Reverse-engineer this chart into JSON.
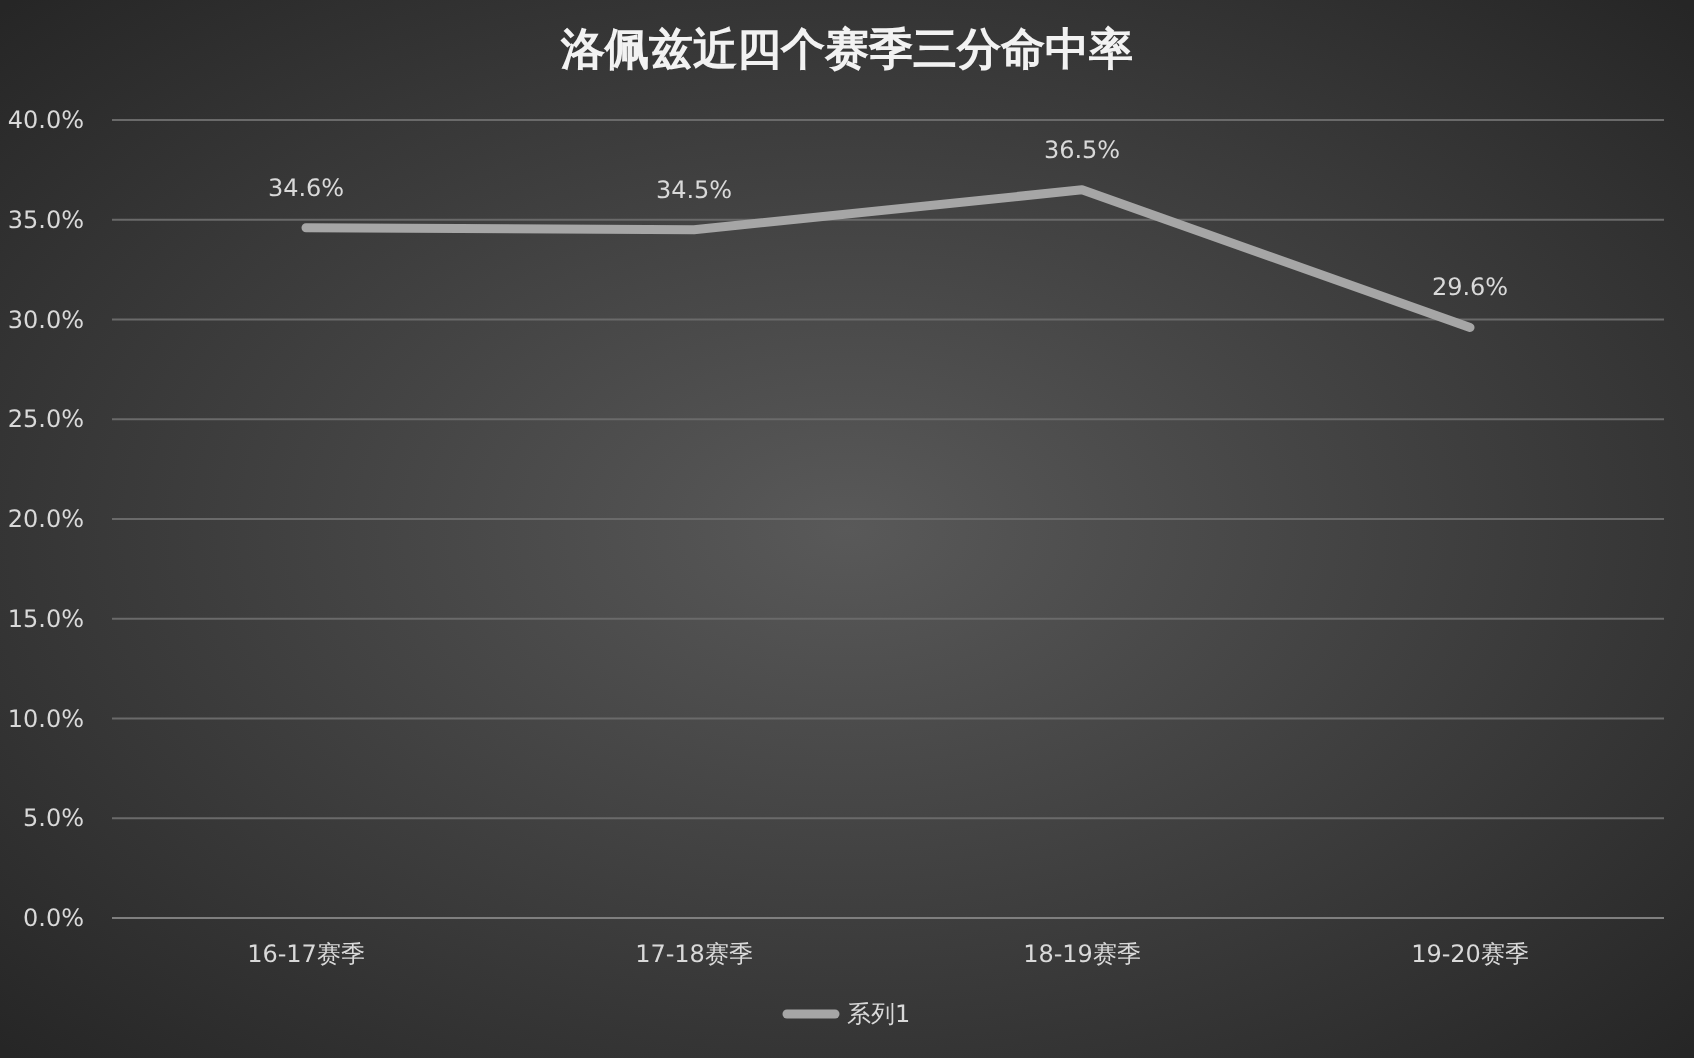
{
  "chart_data": {
    "type": "line",
    "title": "洛佩兹近四个赛季三分命中率",
    "categories": [
      "16-17赛季",
      "17-18赛季",
      "18-19赛季",
      "19-20赛季"
    ],
    "series": [
      {
        "name": "系列1",
        "color": "#a6a6a6",
        "values": [
          34.6,
          34.5,
          36.5,
          29.6
        ],
        "value_labels": [
          "34.6%",
          "34.5%",
          "36.5%",
          "29.6%"
        ]
      }
    ],
    "ylim": [
      0,
      40
    ],
    "yticks": [
      {
        "value": 0,
        "label": "0.0%"
      },
      {
        "value": 5,
        "label": "5.0%"
      },
      {
        "value": 10,
        "label": "10.0%"
      },
      {
        "value": 15,
        "label": "15.0%"
      },
      {
        "value": 20,
        "label": "20.0%"
      },
      {
        "value": 25,
        "label": "25.0%"
      },
      {
        "value": 30,
        "label": "30.0%"
      },
      {
        "value": 35,
        "label": "35.0%"
      },
      {
        "value": 40,
        "label": "40.0%"
      }
    ],
    "grid": "y",
    "legend": "bottom",
    "marker": "none",
    "line_style": "solid"
  }
}
